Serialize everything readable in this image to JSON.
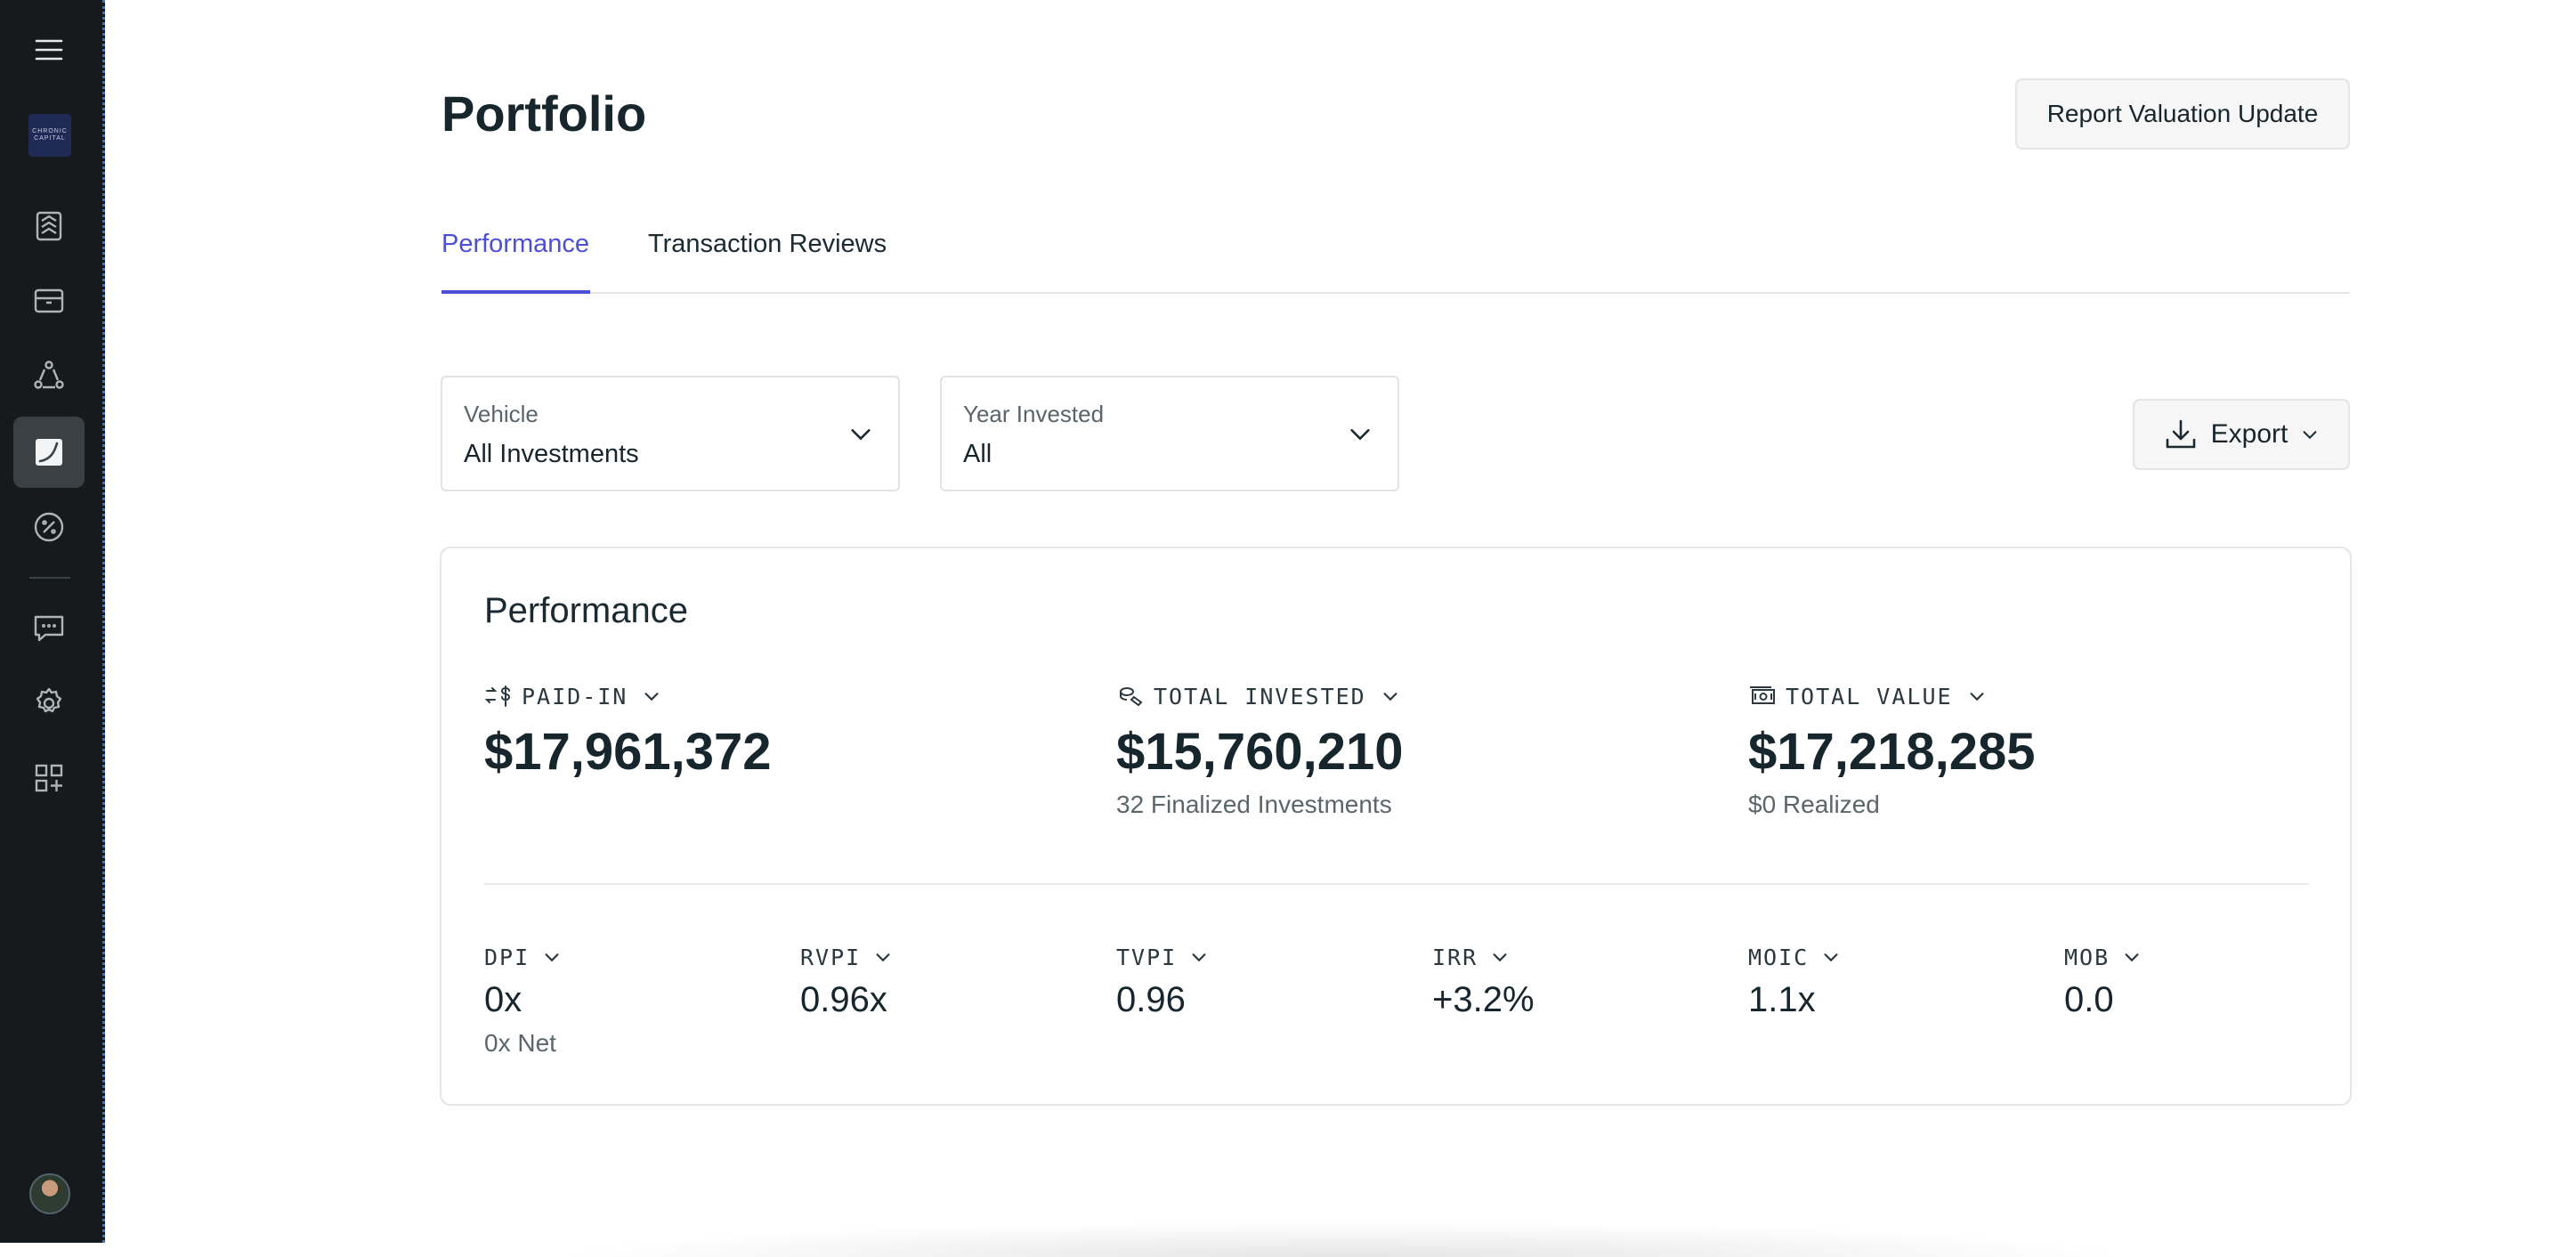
{
  "sidebar": {
    "logo": {
      "line1": "CHRONIC",
      "line2": "CAPITAL"
    },
    "items": [
      {
        "name": "menu",
        "icon": "hamburger-icon"
      },
      {
        "name": "deals",
        "icon": "layers-icon"
      },
      {
        "name": "inbox",
        "icon": "inbox-icon"
      },
      {
        "name": "network",
        "icon": "network-icon"
      },
      {
        "name": "portfolio",
        "icon": "chart-icon",
        "active": true
      },
      {
        "name": "percent",
        "icon": "percent-icon"
      },
      {
        "name": "messages",
        "icon": "message-icon"
      },
      {
        "name": "settings",
        "icon": "gear-icon"
      },
      {
        "name": "apps",
        "icon": "grid-plus-icon"
      }
    ]
  },
  "header": {
    "title": "Portfolio",
    "report_button": "Report Valuation Update"
  },
  "tabs": [
    {
      "label": "Performance",
      "active": true
    },
    {
      "label": "Transaction Reviews",
      "active": false
    }
  ],
  "filters": {
    "vehicle": {
      "label": "Vehicle",
      "value": "All Investments"
    },
    "year": {
      "label": "Year Invested",
      "value": "All"
    }
  },
  "export_button": "Export",
  "performance": {
    "title": "Performance",
    "metrics": [
      {
        "label": "PAID-IN",
        "value": "$17,961,372",
        "sub": ""
      },
      {
        "label": "TOTAL INVESTED",
        "value": "$15,760,210",
        "sub": "32 Finalized Investments"
      },
      {
        "label": "TOTAL VALUE",
        "value": "$17,218,285",
        "sub": "$0 Realized"
      }
    ],
    "kpis": [
      {
        "label": "DPI",
        "value": "0x",
        "sub": "0x Net"
      },
      {
        "label": "RVPI",
        "value": "0.96x",
        "sub": ""
      },
      {
        "label": "TVPI",
        "value": "0.96",
        "sub": ""
      },
      {
        "label": "IRR",
        "value": "+3.2%",
        "sub": ""
      },
      {
        "label": "MOIC",
        "value": "1.1x",
        "sub": ""
      },
      {
        "label": "MOB",
        "value": "0.0",
        "sub": ""
      }
    ]
  },
  "colors": {
    "accent": "#4b4fd6",
    "sidebar_bg": "#161a1c",
    "text": "#17262d"
  }
}
